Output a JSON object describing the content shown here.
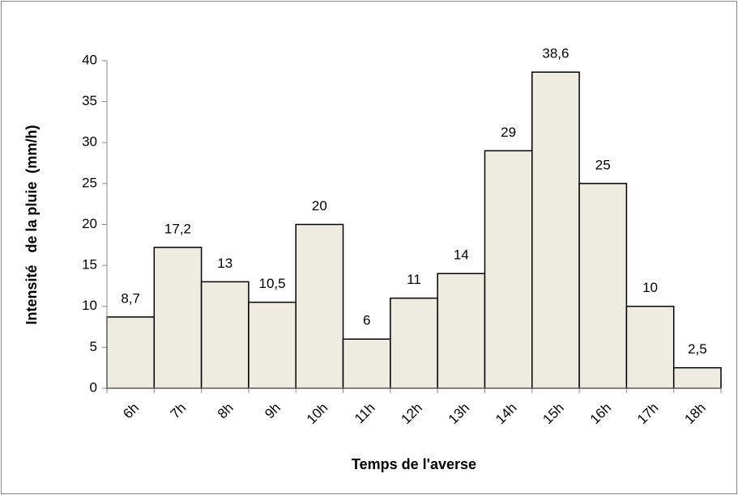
{
  "chart_data": {
    "type": "bar",
    "x_label": "Temps de l'averse",
    "y_label": "Intensité   de la pluie  (mm/h)",
    "categories": [
      "6h",
      "7h",
      "8h",
      "9h",
      "10h",
      "11h",
      "12h",
      "13h",
      "14h",
      "15h",
      "16h",
      "17h",
      "18h"
    ],
    "values": [
      8.7,
      17.2,
      13,
      10.5,
      20,
      6,
      11,
      14,
      29,
      38.6,
      25,
      10,
      2.5
    ],
    "value_labels": [
      "8,7",
      "17,2",
      "13",
      "10,5",
      "20",
      "6",
      "11",
      "14",
      "29",
      "38,6",
      "25",
      "10",
      "2,5"
    ],
    "color": "#eeece1",
    "ylim": [
      0,
      40
    ],
    "yticks": [
      0,
      5,
      10,
      15,
      20,
      25,
      30,
      35,
      40
    ],
    "grid": false
  }
}
